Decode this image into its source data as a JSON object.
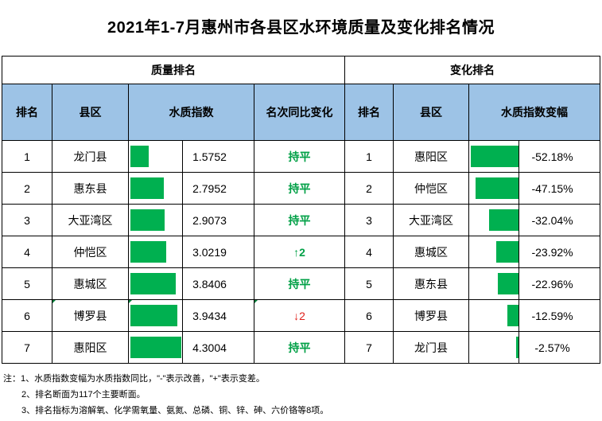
{
  "title": "2021年1-7月惠州市各县区水环境质量及变化排名情况",
  "groups": {
    "quality": "质量排名",
    "change": "变化排名"
  },
  "headers": {
    "rank": "排名",
    "county": "县区",
    "index": "水质指数",
    "yoy": "名次同比变化",
    "rank2": "排名",
    "county2": "县区",
    "delta": "水质指数变幅"
  },
  "quality_rows": [
    {
      "rank": "1",
      "county": "龙门县",
      "index": "1.5752",
      "index_value": 1.5752,
      "change": "持平",
      "change_type": "flat"
    },
    {
      "rank": "2",
      "county": "惠东县",
      "index": "2.7952",
      "index_value": 2.7952,
      "change": "持平",
      "change_type": "flat"
    },
    {
      "rank": "3",
      "county": "大亚湾区",
      "index": "2.9073",
      "index_value": 2.9073,
      "change": "持平",
      "change_type": "flat"
    },
    {
      "rank": "4",
      "county": "仲恺区",
      "index": "3.0219",
      "index_value": 3.0219,
      "change": "↑2",
      "change_type": "up"
    },
    {
      "rank": "5",
      "county": "惠城区",
      "index": "3.8406",
      "index_value": 3.8406,
      "change": "持平",
      "change_type": "flat"
    },
    {
      "rank": "6",
      "county": "博罗县",
      "index": "3.9434",
      "index_value": 3.9434,
      "change": "↓2",
      "change_type": "down"
    },
    {
      "rank": "7",
      "county": "惠阳区",
      "index": "4.3004",
      "index_value": 4.3004,
      "change": "持平",
      "change_type": "flat"
    }
  ],
  "change_rows": [
    {
      "rank": "1",
      "county": "惠阳区",
      "delta": "-52.18%",
      "delta_value": -52.18
    },
    {
      "rank": "2",
      "county": "仲恺区",
      "delta": "-47.15%",
      "delta_value": -47.15
    },
    {
      "rank": "3",
      "county": "大亚湾区",
      "delta": "-32.04%",
      "delta_value": -32.04
    },
    {
      "rank": "4",
      "county": "惠城区",
      "delta": "-23.92%",
      "delta_value": -23.92
    },
    {
      "rank": "5",
      "county": "惠东县",
      "delta": "-22.96%",
      "delta_value": -22.96
    },
    {
      "rank": "6",
      "county": "博罗县",
      "delta": "-12.59%",
      "delta_value": -12.59
    },
    {
      "rank": "7",
      "county": "龙门县",
      "delta": "-2.57%",
      "delta_value": -2.57
    }
  ],
  "notes": [
    "注：1、水质指数变幅为水质指数同比，\"-\"表示改善，\"+\"表示变差。",
    "2、排名断面为117个主要断面。",
    "3、排名指标为溶解氧、化学需氧量、氨氮、总磷、铜、锌、砷、六价铬等8项。"
  ],
  "colors": {
    "header_bg": "#9dc3e6",
    "bar": "#00b050",
    "flat": "#00a046",
    "down": "#e0201b"
  }
}
